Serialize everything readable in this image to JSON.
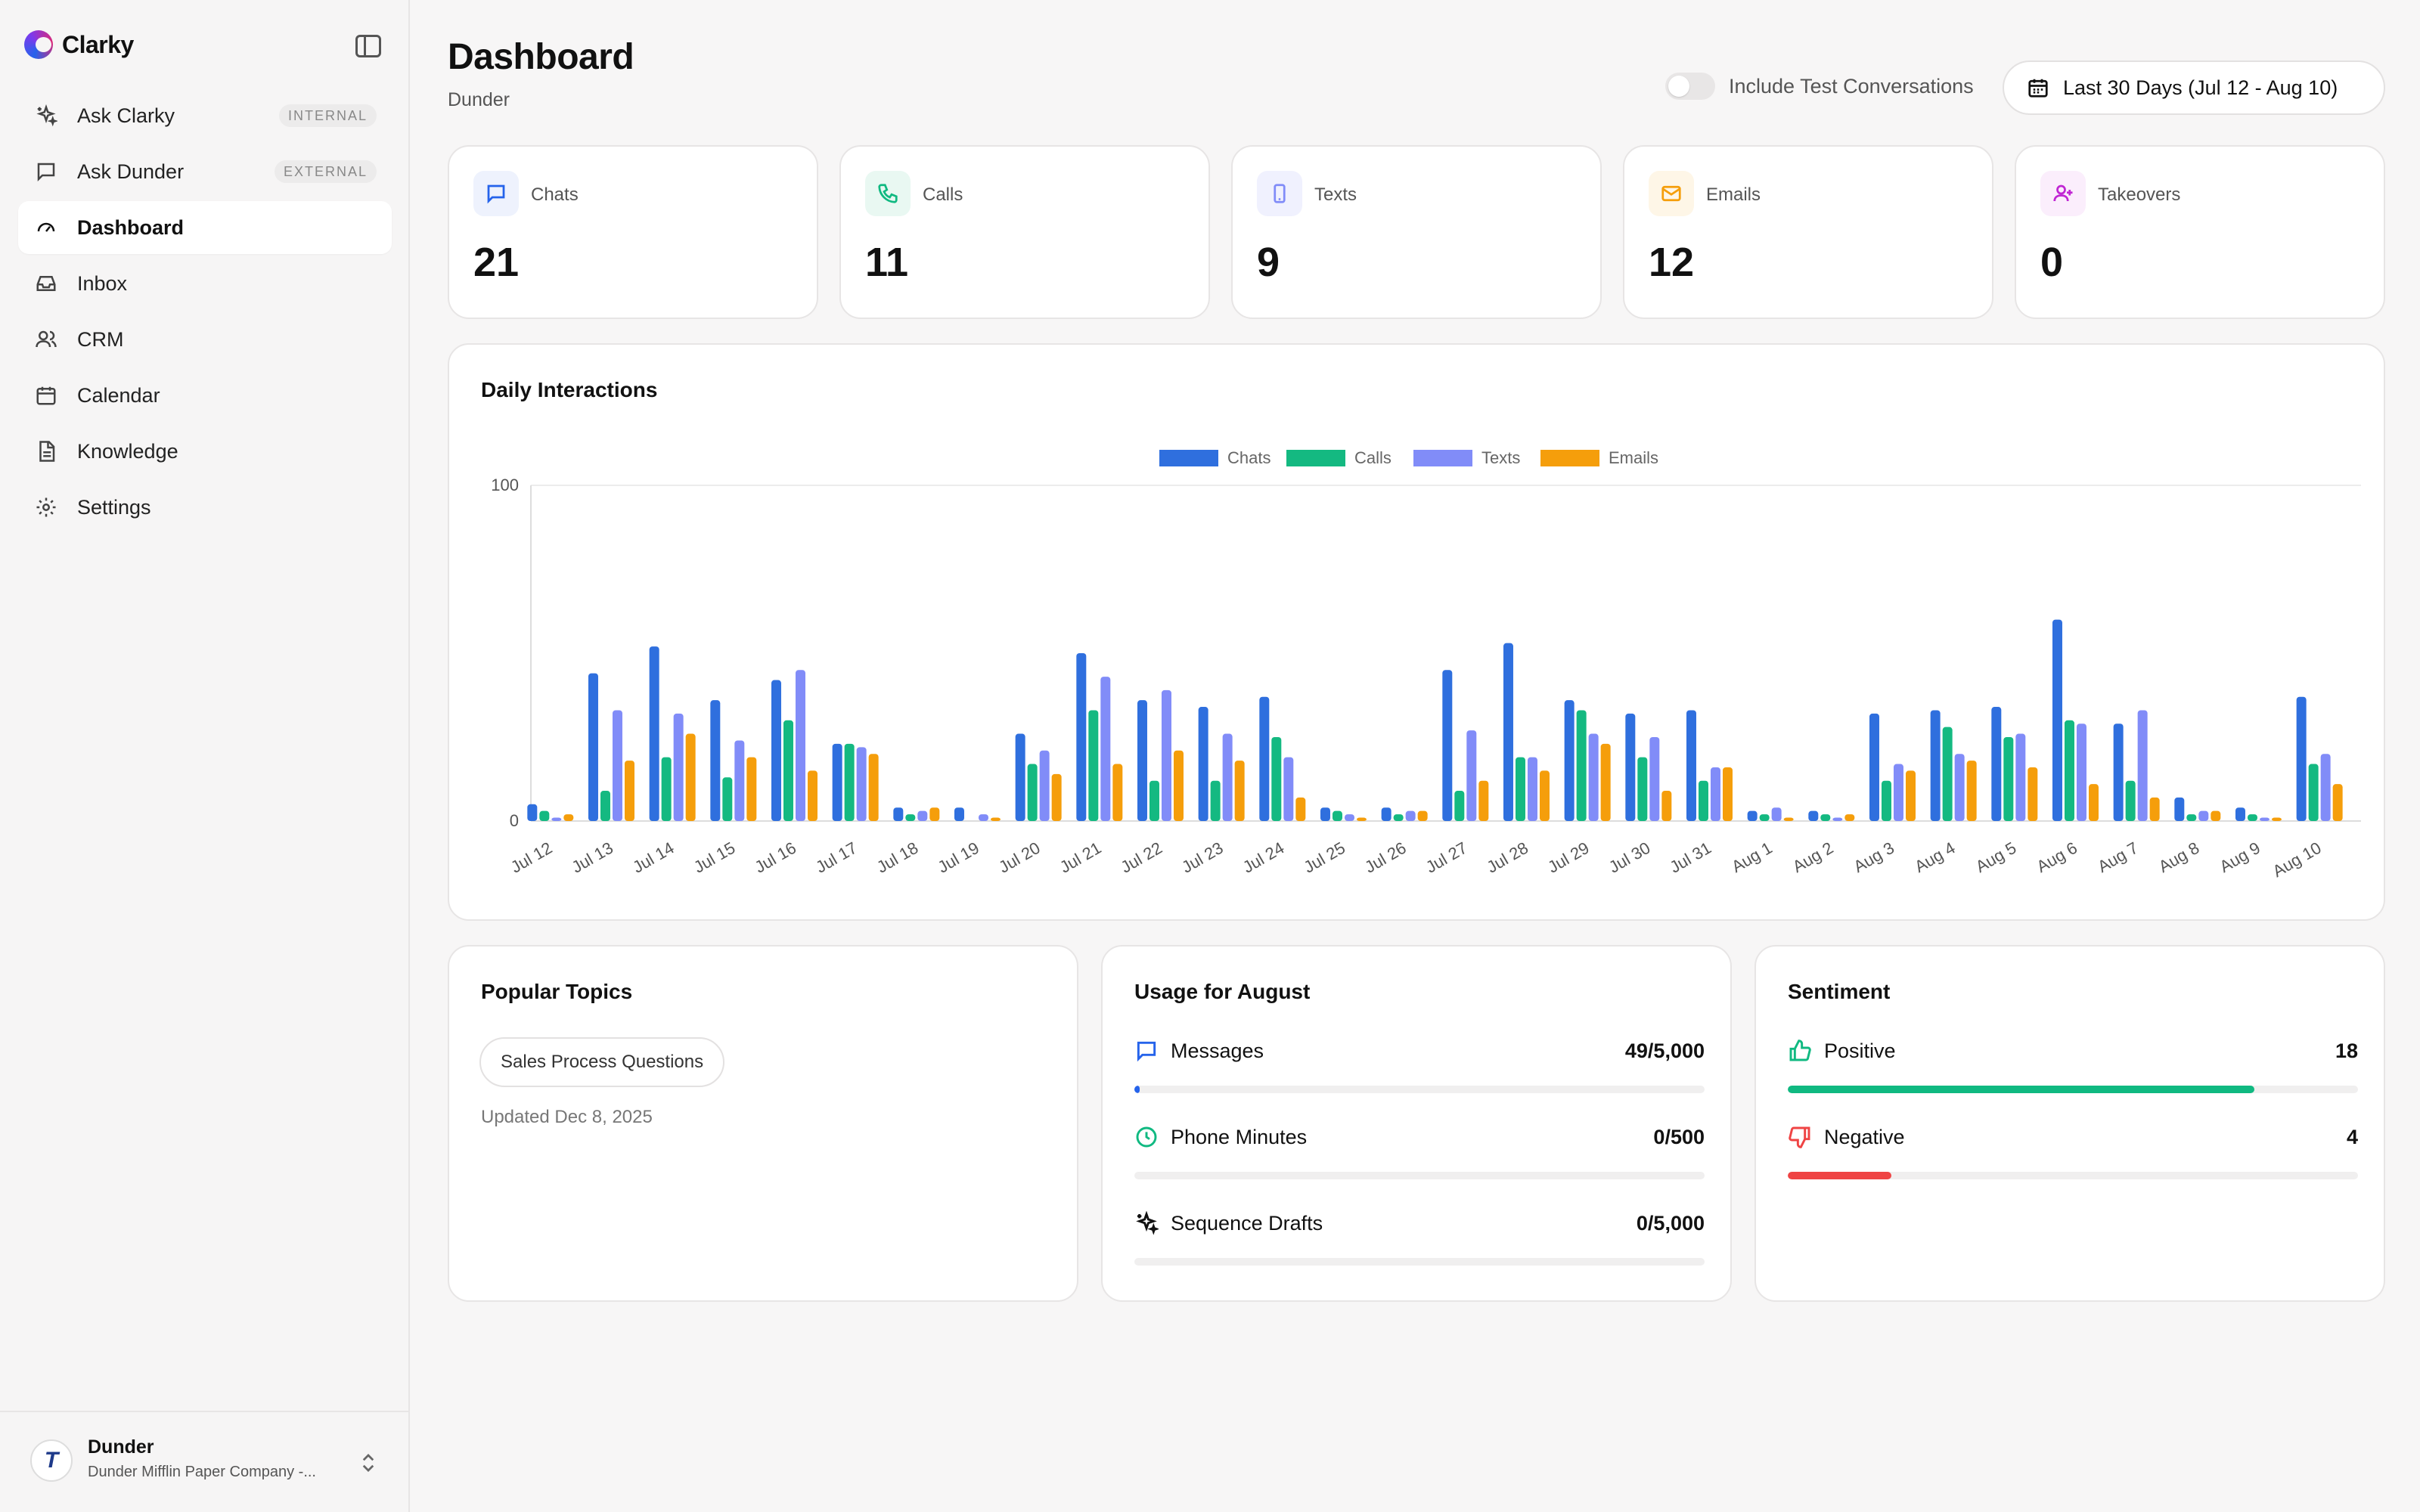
{
  "app": {
    "brand": "Clarky"
  },
  "sidebar": {
    "items": [
      {
        "key": "ask-clarky",
        "label": "Ask Clarky",
        "badge": "INTERNAL",
        "icon": "sparkle-icon"
      },
      {
        "key": "ask-dunder",
        "label": "Ask Dunder",
        "badge": "EXTERNAL",
        "icon": "chat-icon"
      },
      {
        "key": "dashboard",
        "label": "Dashboard",
        "badge": "",
        "icon": "gauge-icon",
        "active": true
      },
      {
        "key": "inbox",
        "label": "Inbox",
        "badge": "",
        "icon": "inbox-icon"
      },
      {
        "key": "crm",
        "label": "CRM",
        "badge": "",
        "icon": "users-icon"
      },
      {
        "key": "calendar",
        "label": "Calendar",
        "badge": "",
        "icon": "calendar-icon"
      },
      {
        "key": "knowledge",
        "label": "Knowledge",
        "badge": "",
        "icon": "document-icon"
      },
      {
        "key": "settings",
        "label": "Settings",
        "badge": "",
        "icon": "gear-icon"
      }
    ],
    "account": {
      "name": "Dunder",
      "company": "Dunder Mifflin Paper Company -...",
      "avatar_letter": "T"
    }
  },
  "header": {
    "title": "Dashboard",
    "subtitle": "Dunder",
    "toggle_label": "Include Test Conversations",
    "toggle_on": false,
    "date_range": "Last 30 Days (Jul 12 - Aug 10)"
  },
  "stats": [
    {
      "label": "Chats",
      "value": "21",
      "icon": "chat-icon",
      "color": "#2563eb",
      "bg": "#eef2fd"
    },
    {
      "label": "Calls",
      "value": "11",
      "icon": "phone-icon",
      "color": "#10b981",
      "bg": "#e9f8f2"
    },
    {
      "label": "Texts",
      "value": "9",
      "icon": "mobile-icon",
      "color": "#818cf8",
      "bg": "#f0f1fe"
    },
    {
      "label": "Emails",
      "value": "12",
      "icon": "mail-icon",
      "color": "#f59e0b",
      "bg": "#fef6e7"
    },
    {
      "label": "Takeovers",
      "value": "0",
      "icon": "user-plus-icon",
      "color": "#c026d3",
      "bg": "#fbeefc"
    }
  ],
  "chart_data": {
    "type": "bar",
    "title": "Daily Interactions",
    "ylim": [
      0,
      100
    ],
    "yticks": [
      "0",
      "100"
    ],
    "legend_position": "top-center",
    "categories": [
      "Jul 12",
      "Jul 13",
      "Jul 14",
      "Jul 15",
      "Jul 16",
      "Jul 17",
      "Jul 18",
      "Jul 19",
      "Jul 20",
      "Jul 21",
      "Jul 22",
      "Jul 23",
      "Jul 24",
      "Jul 25",
      "Jul 26",
      "Jul 27",
      "Jul 28",
      "Jul 29",
      "Jul 30",
      "Jul 31",
      "Aug 1",
      "Aug 2",
      "Aug 3",
      "Aug 4",
      "Aug 5",
      "Aug 6",
      "Aug 7",
      "Aug 8",
      "Aug 9",
      "Aug 10"
    ],
    "series": [
      {
        "name": "Chats",
        "color": "#2f6fde",
        "values": [
          5,
          44,
          52,
          36,
          42,
          23,
          4,
          4,
          26,
          50,
          36,
          34,
          37,
          4,
          4,
          45,
          53,
          36,
          32,
          33,
          3,
          3,
          32,
          33,
          34,
          60,
          29,
          7,
          4,
          37
        ]
      },
      {
        "name": "Calls",
        "color": "#14b981",
        "values": [
          3,
          9,
          19,
          13,
          30,
          23,
          2,
          0,
          17,
          33,
          12,
          12,
          25,
          3,
          2,
          9,
          19,
          33,
          19,
          12,
          2,
          2,
          12,
          28,
          25,
          30,
          12,
          2,
          2,
          17
        ]
      },
      {
        "name": "Texts",
        "color": "#818cf8",
        "values": [
          1,
          33,
          32,
          24,
          45,
          22,
          3,
          2,
          21,
          43,
          39,
          26,
          19,
          2,
          3,
          27,
          19,
          26,
          25,
          16,
          4,
          1,
          17,
          20,
          26,
          29,
          33,
          3,
          1,
          20
        ]
      },
      {
        "name": "Emails",
        "color": "#f59e0b",
        "values": [
          2,
          18,
          26,
          19,
          15,
          20,
          4,
          1,
          14,
          17,
          21,
          18,
          7,
          1,
          3,
          12,
          15,
          23,
          9,
          16,
          1,
          2,
          15,
          18,
          16,
          11,
          7,
          3,
          1,
          11
        ]
      }
    ]
  },
  "topics": {
    "title": "Popular Topics",
    "items": [
      "Sales Process Questions"
    ],
    "updated": "Updated Dec 8, 2025"
  },
  "usage": {
    "title": "Usage for August",
    "items": [
      {
        "label": "Messages",
        "value": "49/5,000",
        "fraction": 0.0098,
        "icon": "chat-icon",
        "color": "#2563eb"
      },
      {
        "label": "Phone Minutes",
        "value": "0/500",
        "fraction": 0,
        "icon": "clock-icon",
        "color": "#10b981"
      },
      {
        "label": "Sequence Drafts",
        "value": "0/5,000",
        "fraction": 0,
        "icon": "sparkle-icon",
        "color": "#111111"
      }
    ]
  },
  "sentiment": {
    "title": "Sentiment",
    "items": [
      {
        "label": "Positive",
        "value": "18",
        "fraction": 0.818,
        "icon": "thumbs-up-icon",
        "color": "#10b981"
      },
      {
        "label": "Negative",
        "value": "4",
        "fraction": 0.182,
        "icon": "thumbs-down-icon",
        "color": "#ef4444"
      }
    ]
  }
}
